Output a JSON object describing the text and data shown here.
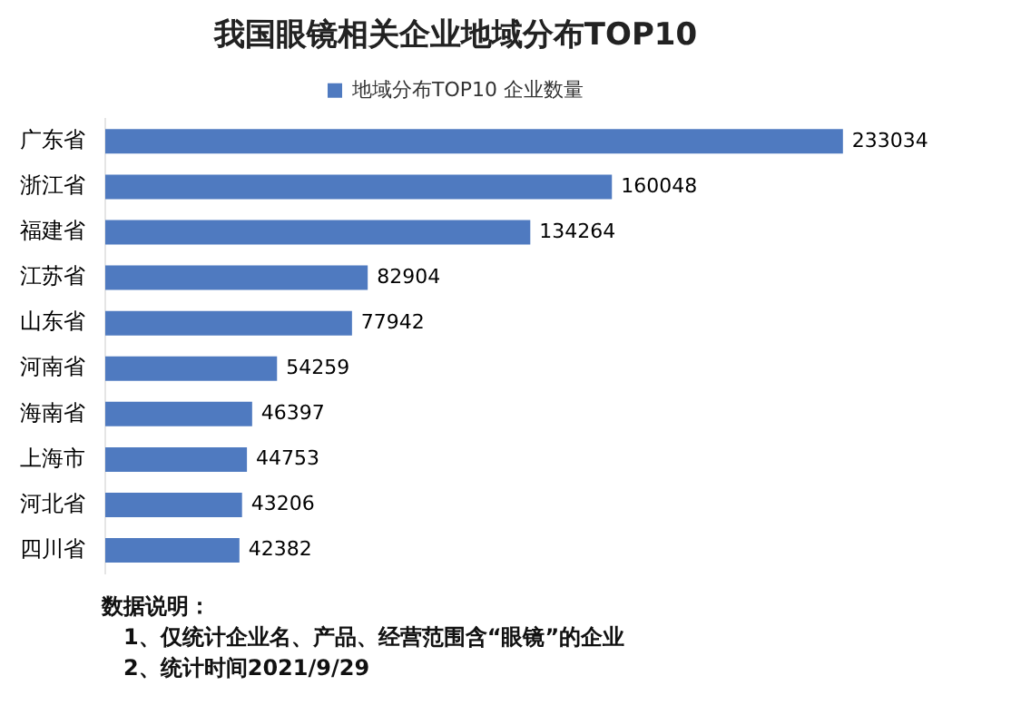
{
  "chart_data": {
    "type": "bar",
    "orientation": "horizontal",
    "title": "我国眼镜相关企业地域分布TOP10",
    "categories": [
      "广东省",
      "浙江省",
      "福建省",
      "江苏省",
      "山东省",
      "河南省",
      "海南省",
      "上海市",
      "河北省",
      "四川省"
    ],
    "series": [
      {
        "name": "地域分布TOP10 企业数量",
        "color": "#4f7ac0",
        "values": [
          233034,
          160048,
          134264,
          82904,
          77942,
          54259,
          46397,
          44753,
          43206,
          42382
        ]
      }
    ],
    "data_labels": true,
    "legend": "top",
    "grid": false,
    "annotations": [
      "数据说明：",
      "1、仅统计企业名、产品、经营范围含“眼镜”的企业",
      "2、统计时间2021/9/29"
    ]
  }
}
